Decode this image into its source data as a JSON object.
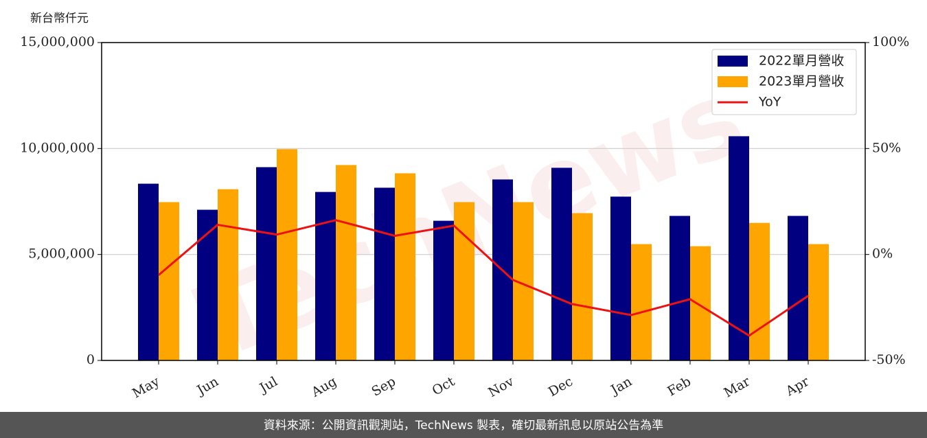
{
  "chart_data": {
    "type": "bar",
    "y_label": "新台幣仟元",
    "watermark": "TechNews",
    "footer": "資料來源：公開資訊觀測站，TechNews 製表，確切最新訊息以原站公告為準",
    "categories": [
      "May",
      "Jun",
      "Jul",
      "Aug",
      "Sep",
      "Oct",
      "Nov",
      "Dec",
      "Jan",
      "Feb",
      "Mar",
      "Apr"
    ],
    "series": [
      {
        "name": "2022單月營收",
        "color": "#000080",
        "type": "bar",
        "values": [
          8340000,
          7110000,
          9120000,
          7950000,
          8150000,
          6590000,
          8540000,
          9090000,
          7730000,
          6820000,
          10580000,
          6820000
        ]
      },
      {
        "name": "2023單月營收",
        "color": "#ffa500",
        "type": "bar",
        "values": [
          7470000,
          8080000,
          9970000,
          9220000,
          8830000,
          7470000,
          7470000,
          6950000,
          5490000,
          5390000,
          6490000,
          5490000
        ]
      },
      {
        "name": "YoY",
        "color": "#ee1111",
        "type": "line",
        "axis": "y2",
        "values": [
          -9.7,
          14,
          9.4,
          16.2,
          8.8,
          13.6,
          -12,
          -23.4,
          -28.6,
          -21.1,
          -38.3,
          -19.5
        ]
      }
    ],
    "ylim": [
      0,
      15000000
    ],
    "yticks": [
      0,
      {
        "value": 5000000,
        "label": "5,000,000"
      },
      {
        "value": 10000000,
        "label": "10,000,000"
      },
      {
        "value": 15000000,
        "label": "15,000,000"
      }
    ],
    "y2lim": [
      -50,
      100
    ],
    "y2ticks": [
      {
        "value": -50,
        "label": "-50%"
      },
      {
        "value": 0,
        "label": "0%"
      },
      {
        "value": 50,
        "label": "50%"
      },
      {
        "value": 100,
        "label": "100%"
      }
    ],
    "grid": true,
    "legend": "upper right"
  }
}
